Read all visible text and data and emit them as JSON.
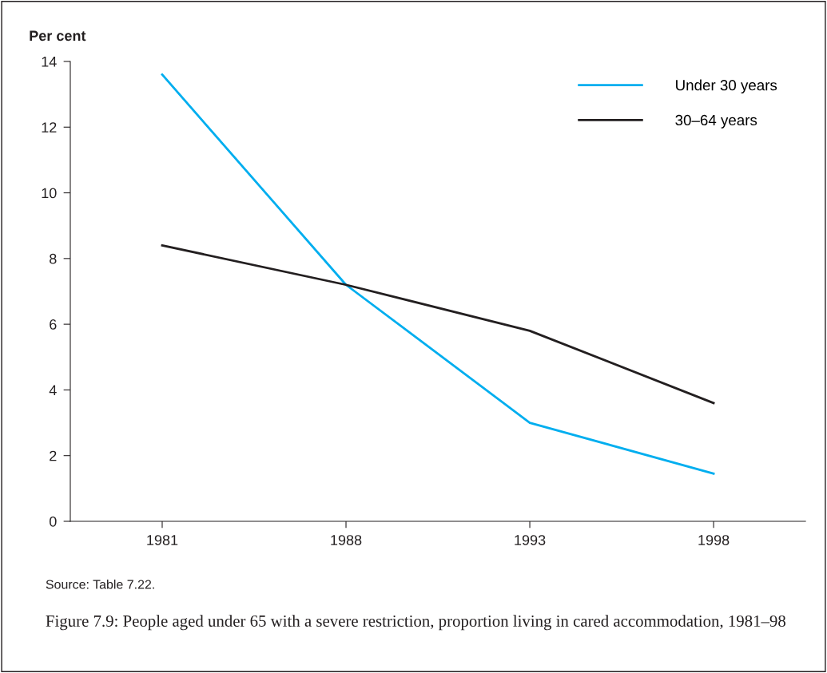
{
  "chart_data": {
    "type": "line",
    "ylabel": "Per cent",
    "title": "Figure 7.9: People aged under 65 with a severe restriction, proportion living in cared accommodation, 1981–98",
    "categories": [
      "1981",
      "1988",
      "1993",
      "1998"
    ],
    "series": [
      {
        "name": "Under 30 years",
        "color": "#00aeef",
        "values": [
          13.6,
          7.2,
          3.0,
          1.45
        ]
      },
      {
        "name": "30–64 years",
        "color": "#231f20",
        "values": [
          8.4,
          7.2,
          5.8,
          3.6
        ]
      }
    ],
    "ylim": [
      0,
      14
    ],
    "yticks": [
      0,
      2,
      4,
      6,
      8,
      10,
      12,
      14
    ],
    "grid": false,
    "legend": "top right",
    "marker": "none",
    "line_style": "solid",
    "annotations": [
      "Source: Table 7.22."
    ]
  }
}
